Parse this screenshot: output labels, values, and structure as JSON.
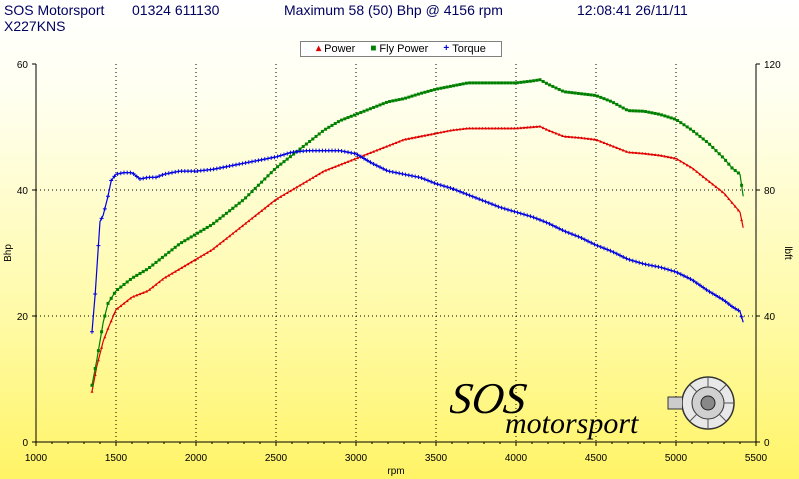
{
  "header": {
    "company": "SOS Motorsport",
    "phone": "01324 611130",
    "maximum": "Maximum 58 (50) Bhp @ 4156 rpm",
    "timestamp": "12:08:41 26/11/11",
    "vehicle": "X227KNS"
  },
  "logo": {
    "line1": "SOS",
    "line2": "motorsport"
  },
  "chart_data": {
    "type": "line",
    "xlabel": "rpm",
    "ylabel": "Bhp",
    "y2label": "lbft",
    "xlim": [
      1000,
      5500
    ],
    "ylim": [
      0,
      60
    ],
    "y2lim": [
      0,
      120
    ],
    "xticks": [
      1000,
      1500,
      2000,
      2500,
      3000,
      3500,
      4000,
      4500,
      5000,
      5500
    ],
    "yticks": [
      0,
      20,
      40,
      60
    ],
    "y2ticks": [
      0,
      40,
      80,
      120
    ],
    "grid": true,
    "legend_position": "top-center",
    "series": [
      {
        "name": "Power",
        "color": "#e00000",
        "axis": "left",
        "x": [
          1350,
          1380,
          1420,
          1450,
          1500,
          1550,
          1600,
          1700,
          1800,
          1900,
          2000,
          2100,
          2200,
          2300,
          2400,
          2500,
          2600,
          2700,
          2800,
          2900,
          3000,
          3100,
          3200,
          3300,
          3400,
          3500,
          3600,
          3700,
          3800,
          3900,
          4000,
          4100,
          4150,
          4200,
          4300,
          4400,
          4500,
          4600,
          4700,
          4800,
          4900,
          5000,
          5100,
          5200,
          5300,
          5350,
          5400,
          5420
        ],
        "y": [
          8,
          12,
          16,
          18,
          21,
          22,
          23,
          24,
          26,
          27.5,
          29,
          30.5,
          32.5,
          34.5,
          36.5,
          38.5,
          40,
          41.5,
          43,
          44,
          45,
          46,
          47,
          48,
          48.5,
          49,
          49.5,
          49.8,
          49.8,
          49.8,
          49.8,
          50,
          50.1,
          49.5,
          48.5,
          48.3,
          48,
          47,
          46,
          45.8,
          45.5,
          45,
          43.5,
          41.5,
          39.5,
          38,
          36.5,
          34
        ]
      },
      {
        "name": "Fly Power",
        "color": "#008000",
        "axis": "left",
        "x": [
          1350,
          1380,
          1420,
          1450,
          1500,
          1550,
          1600,
          1700,
          1800,
          1900,
          2000,
          2100,
          2200,
          2300,
          2400,
          2500,
          2600,
          2700,
          2800,
          2900,
          3000,
          3100,
          3200,
          3300,
          3400,
          3500,
          3600,
          3700,
          3800,
          3900,
          4000,
          4100,
          4150,
          4200,
          4300,
          4400,
          4500,
          4600,
          4700,
          4800,
          4900,
          5000,
          5100,
          5200,
          5300,
          5350,
          5400,
          5420
        ],
        "y": [
          9,
          13,
          19,
          22,
          24,
          25,
          26,
          27.5,
          29.5,
          31.5,
          33,
          34.5,
          36.5,
          38.5,
          41,
          43.5,
          45.5,
          47.5,
          49.5,
          51,
          52,
          53,
          54,
          54.5,
          55.3,
          56,
          56.5,
          57,
          57,
          57,
          57,
          57.3,
          57.5,
          56.8,
          55.6,
          55.3,
          55,
          54,
          52.6,
          52.5,
          52,
          51.2,
          49.5,
          47.5,
          45,
          43.5,
          42.5,
          39
        ]
      },
      {
        "name": "Torque",
        "color": "#0000e0",
        "axis": "right",
        "x": [
          1350,
          1370,
          1400,
          1420,
          1450,
          1470,
          1500,
          1550,
          1600,
          1650,
          1700,
          1750,
          1800,
          1900,
          2000,
          2100,
          2200,
          2300,
          2400,
          2500,
          2600,
          2700,
          2800,
          2900,
          3000,
          3100,
          3200,
          3300,
          3400,
          3500,
          3600,
          3700,
          3800,
          3900,
          4000,
          4100,
          4200,
          4300,
          4400,
          4500,
          4600,
          4700,
          4800,
          4900,
          5000,
          5100,
          5200,
          5300,
          5350,
          5400,
          5420
        ],
        "y": [
          35,
          47,
          70,
          72,
          78,
          83,
          85,
          85.5,
          85.5,
          83.5,
          84,
          84,
          85,
          86,
          86,
          86.5,
          87.5,
          88.5,
          89.5,
          90.5,
          92,
          92.5,
          92.5,
          92.5,
          91.5,
          88.5,
          86,
          85,
          84,
          82,
          80.5,
          78.5,
          76.5,
          74.5,
          73,
          71.5,
          69.5,
          67,
          65,
          62.5,
          60.5,
          58,
          56.5,
          55.5,
          54,
          51.5,
          48,
          45,
          43,
          41.5,
          38
        ]
      }
    ]
  }
}
